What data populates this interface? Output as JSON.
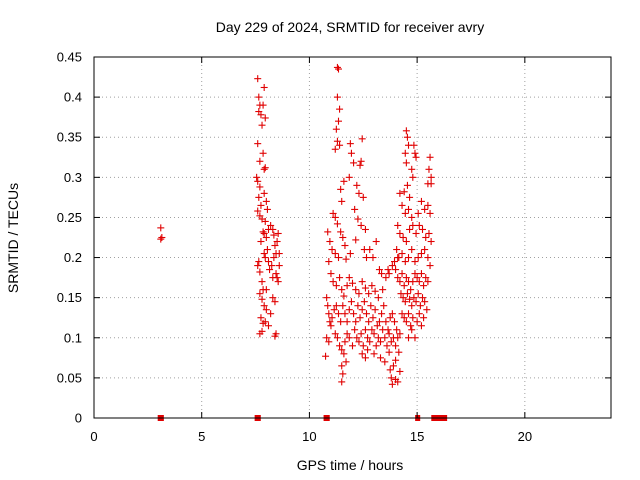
{
  "chart_data": {
    "type": "scatter",
    "title": "Day 229 of 2024, SRMTID for receiver avry",
    "xlabel": "GPS time / hours",
    "ylabel": "SRMTID / TECUs",
    "xlim": [
      0,
      24
    ],
    "ylim": [
      0,
      0.45
    ],
    "xticks": [
      0,
      5,
      10,
      15,
      20
    ],
    "xtick_labels": [
      "0",
      "5",
      "10",
      "15",
      "20"
    ],
    "yticks": [
      0,
      0.05,
      0.1,
      0.15,
      0.2,
      0.25,
      0.3,
      0.35,
      0.4,
      0.45
    ],
    "ytick_labels": [
      "0",
      "0.05",
      "0.1",
      "0.15",
      "0.2",
      "0.25",
      "0.3",
      "0.35",
      "0.4",
      "0.45"
    ],
    "grid": true,
    "marker": "+",
    "series_color": "#e00000",
    "zero_clusters": [
      {
        "x_start": 3.05,
        "x_end": 3.15
      },
      {
        "x_start": 7.55,
        "x_end": 7.65
      },
      {
        "x_start": 10.75,
        "x_end": 10.85
      },
      {
        "x_start": 15.0,
        "x_end": 15.05
      },
      {
        "x_start": 15.75,
        "x_end": 16.3
      }
    ],
    "points": [
      [
        3.1,
        0.237
      ],
      [
        3.15,
        0.225
      ],
      [
        3.1,
        0.223
      ],
      [
        7.6,
        0.423
      ],
      [
        7.65,
        0.4
      ],
      [
        7.7,
        0.39
      ],
      [
        7.75,
        0.378
      ],
      [
        7.65,
        0.382
      ],
      [
        7.8,
        0.365
      ],
      [
        7.9,
        0.412
      ],
      [
        7.85,
        0.39
      ],
      [
        7.95,
        0.374
      ],
      [
        7.6,
        0.342
      ],
      [
        7.7,
        0.32
      ],
      [
        7.85,
        0.33
      ],
      [
        7.95,
        0.312
      ],
      [
        7.9,
        0.31
      ],
      [
        7.55,
        0.3
      ],
      [
        7.6,
        0.295
      ],
      [
        7.7,
        0.288
      ],
      [
        7.65,
        0.275
      ],
      [
        7.75,
        0.265
      ],
      [
        7.6,
        0.258
      ],
      [
        7.7,
        0.252
      ],
      [
        7.8,
        0.248
      ],
      [
        7.9,
        0.28
      ],
      [
        8.0,
        0.27
      ],
      [
        8.05,
        0.26
      ],
      [
        7.95,
        0.245
      ],
      [
        7.85,
        0.232
      ],
      [
        7.9,
        0.23
      ],
      [
        8.0,
        0.225
      ],
      [
        8.1,
        0.235
      ],
      [
        7.75,
        0.22
      ],
      [
        8.2,
        0.24
      ],
      [
        8.3,
        0.235
      ],
      [
        8.35,
        0.228
      ],
      [
        8.4,
        0.215
      ],
      [
        8.45,
        0.205
      ],
      [
        8.5,
        0.22
      ],
      [
        8.55,
        0.23
      ],
      [
        7.65,
        0.195
      ],
      [
        7.6,
        0.19
      ],
      [
        7.7,
        0.182
      ],
      [
        7.8,
        0.17
      ],
      [
        7.85,
        0.16
      ],
      [
        7.9,
        0.205
      ],
      [
        7.95,
        0.2
      ],
      [
        8.05,
        0.21
      ],
      [
        8.1,
        0.195
      ],
      [
        8.15,
        0.185
      ],
      [
        8.25,
        0.19
      ],
      [
        8.3,
        0.175
      ],
      [
        8.35,
        0.2
      ],
      [
        8.45,
        0.18
      ],
      [
        8.5,
        0.175
      ],
      [
        8.55,
        0.17
      ],
      [
        8.6,
        0.19
      ],
      [
        8.6,
        0.205
      ],
      [
        7.7,
        0.155
      ],
      [
        7.8,
        0.148
      ],
      [
        7.9,
        0.14
      ],
      [
        8.0,
        0.135
      ],
      [
        7.75,
        0.125
      ],
      [
        7.85,
        0.118
      ],
      [
        7.95,
        0.12
      ],
      [
        8.1,
        0.115
      ],
      [
        8.2,
        0.13
      ],
      [
        8.3,
        0.15
      ],
      [
        8.4,
        0.145
      ],
      [
        8.45,
        0.105
      ],
      [
        8.4,
        0.102
      ],
      [
        7.7,
        0.105
      ],
      [
        7.8,
        0.108
      ],
      [
        8.0,
        0.16
      ],
      [
        11.3,
        0.437
      ],
      [
        11.35,
        0.435
      ],
      [
        11.3,
        0.4
      ],
      [
        11.4,
        0.385
      ],
      [
        11.35,
        0.37
      ],
      [
        11.25,
        0.36
      ],
      [
        11.3,
        0.345
      ],
      [
        11.2,
        0.335
      ],
      [
        11.4,
        0.34
      ],
      [
        11.9,
        0.342
      ],
      [
        11.95,
        0.33
      ],
      [
        12.05,
        0.318
      ],
      [
        12.45,
        0.348
      ],
      [
        12.4,
        0.32
      ],
      [
        12.35,
        0.315
      ],
      [
        11.85,
        0.3
      ],
      [
        11.6,
        0.295
      ],
      [
        12.2,
        0.29
      ],
      [
        12.3,
        0.28
      ],
      [
        12.5,
        0.275
      ],
      [
        11.45,
        0.285
      ],
      [
        11.5,
        0.27
      ],
      [
        11.1,
        0.255
      ],
      [
        11.2,
        0.25
      ],
      [
        11.3,
        0.242
      ],
      [
        11.45,
        0.232
      ],
      [
        11.55,
        0.225
      ],
      [
        11.65,
        0.215
      ],
      [
        12.1,
        0.26
      ],
      [
        12.25,
        0.248
      ],
      [
        12.4,
        0.24
      ],
      [
        12.6,
        0.235
      ],
      [
        12.15,
        0.222
      ],
      [
        10.85,
        0.232
      ],
      [
        10.95,
        0.22
      ],
      [
        11.05,
        0.21
      ],
      [
        11.2,
        0.205
      ],
      [
        11.35,
        0.2
      ],
      [
        11.7,
        0.198
      ],
      [
        11.9,
        0.205
      ],
      [
        12.55,
        0.21
      ],
      [
        12.65,
        0.2
      ],
      [
        12.8,
        0.21
      ],
      [
        12.95,
        0.2
      ],
      [
        13.1,
        0.22
      ],
      [
        13.25,
        0.185
      ],
      [
        13.35,
        0.18
      ],
      [
        10.9,
        0.195
      ],
      [
        11.0,
        0.18
      ],
      [
        11.1,
        0.17
      ],
      [
        11.25,
        0.165
      ],
      [
        11.4,
        0.175
      ],
      [
        11.5,
        0.16
      ],
      [
        11.6,
        0.152
      ],
      [
        11.75,
        0.165
      ],
      [
        11.85,
        0.175
      ],
      [
        12.0,
        0.168
      ],
      [
        12.15,
        0.16
      ],
      [
        12.3,
        0.155
      ],
      [
        12.45,
        0.17
      ],
      [
        12.6,
        0.162
      ],
      [
        12.75,
        0.155
      ],
      [
        12.9,
        0.165
      ],
      [
        13.05,
        0.158
      ],
      [
        13.2,
        0.15
      ],
      [
        13.4,
        0.16
      ],
      [
        13.55,
        0.175
      ],
      [
        13.7,
        0.18
      ],
      [
        13.85,
        0.19
      ],
      [
        13.95,
        0.195
      ],
      [
        14.1,
        0.2
      ],
      [
        13.65,
        0.185
      ],
      [
        10.8,
        0.15
      ],
      [
        10.85,
        0.14
      ],
      [
        10.9,
        0.13
      ],
      [
        10.95,
        0.12
      ],
      [
        11.0,
        0.115
      ],
      [
        11.05,
        0.125
      ],
      [
        11.15,
        0.135
      ],
      [
        11.25,
        0.14
      ],
      [
        11.35,
        0.13
      ],
      [
        11.45,
        0.12
      ],
      [
        11.55,
        0.14
      ],
      [
        11.65,
        0.13
      ],
      [
        11.75,
        0.12
      ],
      [
        11.85,
        0.135
      ],
      [
        11.95,
        0.145
      ],
      [
        12.05,
        0.13
      ],
      [
        12.15,
        0.12
      ],
      [
        12.25,
        0.14
      ],
      [
        12.35,
        0.125
      ],
      [
        12.45,
        0.135
      ],
      [
        12.55,
        0.145
      ],
      [
        12.65,
        0.13
      ],
      [
        12.75,
        0.12
      ],
      [
        12.85,
        0.14
      ],
      [
        12.95,
        0.125
      ],
      [
        13.05,
        0.135
      ],
      [
        13.15,
        0.115
      ],
      [
        13.25,
        0.12
      ],
      [
        13.35,
        0.13
      ],
      [
        13.45,
        0.14
      ],
      [
        13.55,
        0.12
      ],
      [
        13.65,
        0.11
      ],
      [
        13.75,
        0.125
      ],
      [
        13.85,
        0.13
      ],
      [
        13.95,
        0.12
      ],
      [
        14.05,
        0.11
      ],
      [
        10.8,
        0.1
      ],
      [
        10.9,
        0.095
      ],
      [
        11.2,
        0.105
      ],
      [
        11.3,
        0.1
      ],
      [
        11.4,
        0.09
      ],
      [
        11.5,
        0.085
      ],
      [
        11.6,
        0.08
      ],
      [
        11.65,
        0.095
      ],
      [
        11.75,
        0.105
      ],
      [
        11.85,
        0.1
      ],
      [
        12.0,
        0.09
      ],
      [
        12.1,
        0.11
      ],
      [
        12.2,
        0.1
      ],
      [
        12.3,
        0.095
      ],
      [
        12.4,
        0.105
      ],
      [
        12.5,
        0.09
      ],
      [
        12.6,
        0.11
      ],
      [
        12.7,
        0.1
      ],
      [
        12.8,
        0.095
      ],
      [
        12.9,
        0.11
      ],
      [
        13.0,
        0.105
      ],
      [
        13.1,
        0.09
      ],
      [
        13.2,
        0.1
      ],
      [
        13.3,
        0.095
      ],
      [
        13.4,
        0.11
      ],
      [
        13.5,
        0.1
      ],
      [
        13.6,
        0.09
      ],
      [
        13.7,
        0.105
      ],
      [
        13.8,
        0.095
      ],
      [
        13.9,
        0.1
      ],
      [
        14.0,
        0.09
      ],
      [
        14.1,
        0.1
      ],
      [
        14.2,
        0.105
      ],
      [
        10.75,
        0.077
      ],
      [
        11.5,
        0.065
      ],
      [
        11.55,
        0.055
      ],
      [
        11.5,
        0.045
      ],
      [
        11.7,
        0.07
      ],
      [
        12.45,
        0.08
      ],
      [
        12.6,
        0.075
      ],
      [
        12.7,
        0.085
      ],
      [
        13.0,
        0.08
      ],
      [
        13.3,
        0.075
      ],
      [
        13.5,
        0.07
      ],
      [
        13.7,
        0.082
      ],
      [
        13.75,
        0.06
      ],
      [
        13.9,
        0.065
      ],
      [
        14.0,
        0.072
      ],
      [
        13.8,
        0.05
      ],
      [
        13.85,
        0.042
      ],
      [
        14.0,
        0.048
      ],
      [
        14.1,
        0.045
      ],
      [
        14.2,
        0.058
      ],
      [
        14.15,
        0.082
      ],
      [
        14.5,
        0.358
      ],
      [
        14.55,
        0.35
      ],
      [
        14.6,
        0.34
      ],
      [
        14.45,
        0.33
      ],
      [
        14.5,
        0.318
      ],
      [
        14.85,
        0.34
      ],
      [
        14.9,
        0.33
      ],
      [
        14.95,
        0.325
      ],
      [
        14.75,
        0.31
      ],
      [
        15.6,
        0.325
      ],
      [
        15.55,
        0.31
      ],
      [
        15.65,
        0.3
      ],
      [
        15.5,
        0.292
      ],
      [
        15.65,
        0.292
      ],
      [
        14.8,
        0.3
      ],
      [
        14.55,
        0.29
      ],
      [
        14.4,
        0.282
      ],
      [
        14.65,
        0.275
      ],
      [
        14.2,
        0.28
      ],
      [
        14.3,
        0.265
      ],
      [
        14.45,
        0.255
      ],
      [
        14.6,
        0.26
      ],
      [
        14.75,
        0.25
      ],
      [
        15.05,
        0.255
      ],
      [
        15.2,
        0.27
      ],
      [
        15.35,
        0.26
      ],
      [
        15.5,
        0.265
      ],
      [
        15.6,
        0.255
      ],
      [
        14.1,
        0.24
      ],
      [
        14.2,
        0.23
      ],
      [
        14.35,
        0.225
      ],
      [
        14.5,
        0.22
      ],
      [
        14.65,
        0.235
      ],
      [
        14.8,
        0.24
      ],
      [
        14.95,
        0.23
      ],
      [
        15.1,
        0.24
      ],
      [
        15.25,
        0.235
      ],
      [
        15.4,
        0.225
      ],
      [
        15.55,
        0.23
      ],
      [
        15.65,
        0.22
      ],
      [
        14.05,
        0.21
      ],
      [
        14.15,
        0.2
      ],
      [
        14.3,
        0.205
      ],
      [
        14.45,
        0.195
      ],
      [
        14.6,
        0.2
      ],
      [
        14.75,
        0.21
      ],
      [
        14.9,
        0.195
      ],
      [
        15.05,
        0.2
      ],
      [
        15.2,
        0.205
      ],
      [
        15.35,
        0.21
      ],
      [
        15.5,
        0.2
      ],
      [
        15.6,
        0.19
      ],
      [
        14.0,
        0.185
      ],
      [
        14.1,
        0.175
      ],
      [
        14.2,
        0.17
      ],
      [
        14.3,
        0.18
      ],
      [
        14.4,
        0.165
      ],
      [
        14.5,
        0.175
      ],
      [
        14.6,
        0.17
      ],
      [
        14.7,
        0.16
      ],
      [
        14.8,
        0.17
      ],
      [
        14.9,
        0.18
      ],
      [
        15.0,
        0.175
      ],
      [
        15.1,
        0.17
      ],
      [
        15.2,
        0.18
      ],
      [
        15.3,
        0.165
      ],
      [
        15.4,
        0.175
      ],
      [
        15.5,
        0.17
      ],
      [
        14.25,
        0.155
      ],
      [
        14.35,
        0.15
      ],
      [
        14.45,
        0.145
      ],
      [
        14.55,
        0.155
      ],
      [
        14.65,
        0.148
      ],
      [
        14.75,
        0.14
      ],
      [
        14.85,
        0.15
      ],
      [
        14.95,
        0.145
      ],
      [
        15.05,
        0.155
      ],
      [
        15.15,
        0.14
      ],
      [
        15.25,
        0.15
      ],
      [
        15.35,
        0.145
      ],
      [
        15.45,
        0.135
      ],
      [
        14.3,
        0.13
      ],
      [
        14.4,
        0.125
      ],
      [
        14.5,
        0.12
      ],
      [
        14.6,
        0.13
      ],
      [
        14.7,
        0.115
      ],
      [
        14.8,
        0.125
      ],
      [
        15.0,
        0.12
      ],
      [
        15.1,
        0.13
      ],
      [
        15.2,
        0.115
      ],
      [
        15.3,
        0.125
      ],
      [
        14.6,
        0.1
      ],
      [
        14.75,
        0.11
      ],
      [
        14.9,
        0.1
      ]
    ]
  }
}
